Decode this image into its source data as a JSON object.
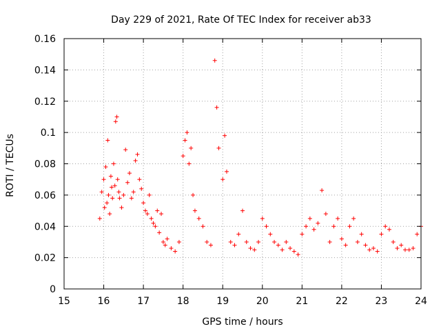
{
  "chart_data": {
    "type": "scatter",
    "title": "Day 229 of 2021, Rate Of TEC Index for receiver ab33",
    "xlabel": "GPS time / hours",
    "ylabel": "ROTI / TECUs",
    "xlim": [
      15,
      24
    ],
    "ylim": [
      0,
      0.16
    ],
    "x_ticks": [
      "15",
      "16",
      "17",
      "18",
      "19",
      "20",
      "21",
      "22",
      "23",
      "24"
    ],
    "y_ticks": [
      "0",
      "0.02",
      "0.04",
      "0.06",
      "0.08",
      "0.1",
      "0.12",
      "0.14",
      "0.16"
    ],
    "grid": true,
    "marker": "+",
    "color": "#ff0000",
    "series": [
      {
        "x": [
          15.9,
          15.95,
          16.0,
          16.02,
          16.05,
          16.08,
          16.1,
          16.12,
          16.15,
          16.18,
          16.2,
          16.22,
          16.25,
          16.28,
          16.3,
          16.33,
          16.35,
          16.38,
          16.4,
          16.45,
          16.5,
          16.55,
          16.6,
          16.65,
          16.7,
          16.75,
          16.8,
          16.85,
          16.9,
          16.95,
          17.0,
          17.05,
          17.1,
          17.15,
          17.2,
          17.25,
          17.3,
          17.35,
          17.4,
          17.45,
          17.5,
          17.55,
          17.6,
          17.7,
          17.8,
          17.9,
          18.0,
          18.05,
          18.1,
          18.15,
          18.2,
          18.25,
          18.3,
          18.4,
          18.5,
          18.6,
          18.7,
          18.8,
          18.85,
          18.9,
          19.0,
          19.05,
          19.1,
          19.2,
          19.3,
          19.4,
          19.5,
          19.6,
          19.7,
          19.8,
          19.9,
          20.0,
          20.1,
          20.2,
          20.3,
          20.4,
          20.5,
          20.6,
          20.7,
          20.8,
          20.9,
          21.0,
          21.1,
          21.2,
          21.3,
          21.4,
          21.5,
          21.6,
          21.7,
          21.8,
          21.9,
          22.0,
          22.1,
          22.2,
          22.3,
          22.4,
          22.5,
          22.6,
          22.7,
          22.8,
          22.9,
          23.0,
          23.1,
          23.2,
          23.3,
          23.4,
          23.5,
          23.6,
          23.7,
          23.8,
          23.9,
          24.0
        ],
        "y": [
          0.045,
          0.062,
          0.07,
          0.052,
          0.078,
          0.055,
          0.095,
          0.06,
          0.048,
          0.072,
          0.065,
          0.058,
          0.08,
          0.066,
          0.107,
          0.11,
          0.07,
          0.062,
          0.058,
          0.052,
          0.06,
          0.089,
          0.068,
          0.074,
          0.058,
          0.062,
          0.082,
          0.086,
          0.07,
          0.064,
          0.055,
          0.05,
          0.048,
          0.06,
          0.045,
          0.042,
          0.04,
          0.05,
          0.036,
          0.048,
          0.03,
          0.028,
          0.032,
          0.026,
          0.024,
          0.03,
          0.085,
          0.095,
          0.1,
          0.08,
          0.09,
          0.06,
          0.05,
          0.045,
          0.04,
          0.03,
          0.028,
          0.146,
          0.116,
          0.09,
          0.07,
          0.098,
          0.075,
          0.03,
          0.028,
          0.035,
          0.05,
          0.03,
          0.026,
          0.025,
          0.03,
          0.045,
          0.04,
          0.035,
          0.03,
          0.028,
          0.025,
          0.03,
          0.026,
          0.024,
          0.022,
          0.035,
          0.04,
          0.045,
          0.038,
          0.042,
          0.063,
          0.048,
          0.03,
          0.04,
          0.045,
          0.032,
          0.028,
          0.04,
          0.045,
          0.03,
          0.035,
          0.028,
          0.025,
          0.026,
          0.024,
          0.035,
          0.04,
          0.038,
          0.03,
          0.026,
          0.028,
          0.025,
          0.025,
          0.026,
          0.035,
          0.04
        ]
      }
    ]
  }
}
